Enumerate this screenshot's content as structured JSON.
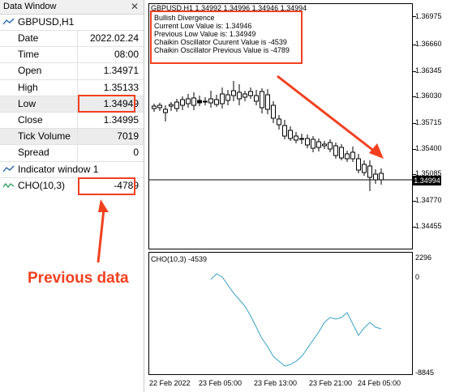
{
  "data_window": {
    "title": "Data Window",
    "close_glyph": "✕",
    "symbol": "GBPUSD,H1",
    "rows": [
      {
        "label": "Date",
        "value": "2022.02.24"
      },
      {
        "label": "Time",
        "value": "08:00"
      },
      {
        "label": "Open",
        "value": "1.34971"
      },
      {
        "label": "High",
        "value": "1.35133"
      },
      {
        "label": "Low",
        "value": "1.34949"
      },
      {
        "label": "Close",
        "value": "1.34995"
      },
      {
        "label": "Tick Volume",
        "value": "7019"
      },
      {
        "label": "Spread",
        "value": "0"
      }
    ],
    "indicator_window": "Indicator window 1",
    "indicator": {
      "label": "CHO(10,3)",
      "value": "-4789"
    }
  },
  "annotation": {
    "previous_data": "Previous data",
    "color": "#f2401f"
  },
  "chart": {
    "header": "GBPUSD,H1  1.34992 1.34996 1.34946 1.34994",
    "info": [
      "Bullish Divergence",
      "Current Low Value is: 1.34946",
      "Previous Low Value is: 1.34949",
      "Chaikin Oscillator Cuurent Value is -4539",
      "Chaikin Oscillator Previous Value is -4789"
    ],
    "price_labels": [
      "1.36975",
      "1.36660",
      "1.36345",
      "1.36030",
      "1.35715",
      "1.35400",
      "1.35085",
      "1.34770",
      "1.34455"
    ],
    "current_price": "1.34994",
    "osc_header": "CHO(10,3) -4539",
    "osc_labels": [
      "2296",
      "0",
      "-8845"
    ],
    "time_labels": [
      "22 Feb 2022",
      "23 Feb 05:00",
      "23 Feb 13:00",
      "23 Feb 21:00",
      "24 Feb 05:00"
    ],
    "osc_color": "#3aa0c8"
  }
}
